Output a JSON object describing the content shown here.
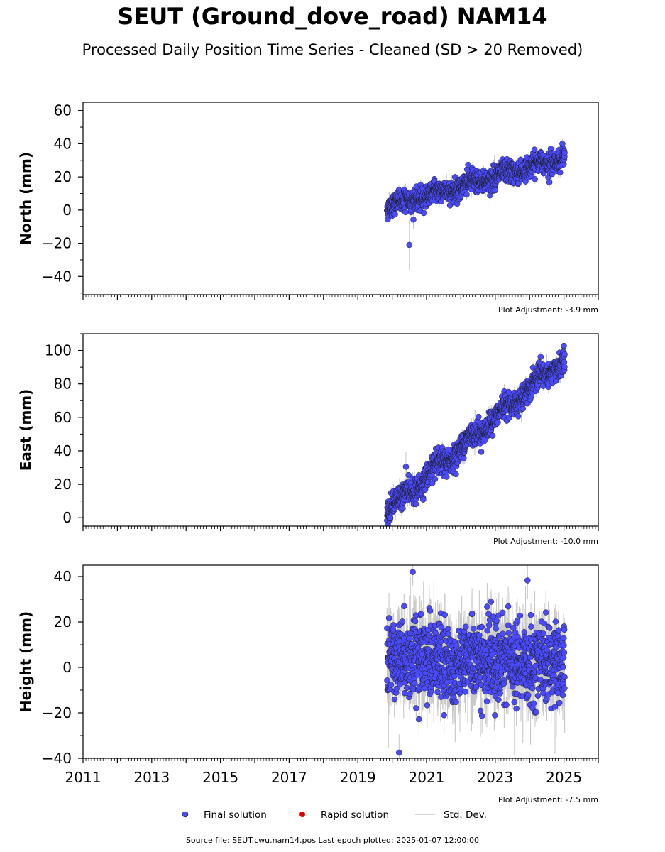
{
  "header": {
    "title": "SEUT (Ground_dove_road) NAM14",
    "subtitle": "Processed Daily Position Time Series - Cleaned (SD > 20 Removed)"
  },
  "footer": {
    "source": "Source file: SEUT.cwu.nam14.pos  Last epoch plotted: 2025-01-07 12:00:00"
  },
  "legend": {
    "final_label": "Final solution",
    "rapid_label": "Rapid solution",
    "std_label": "Std. Dev."
  },
  "colors": {
    "final_fill": "#4a4aff",
    "rapid_fill": "#e00000",
    "std_dev": "#c8c8c8",
    "marker_edge": "#1a1a1a"
  },
  "chart_data": [
    {
      "type": "scatter",
      "component": "north",
      "ylabel": "North (mm)",
      "xlim": [
        2011,
        2026
      ],
      "ylim": [
        -51,
        65
      ],
      "yticks": [
        60,
        40,
        20,
        0,
        -20,
        -40
      ],
      "ytick_labels": [
        "60",
        "40",
        "20",
        "0",
        "−20",
        "−40"
      ],
      "adjustment": "Plot Adjustment: -3.9 mm",
      "start_year": 2019.85,
      "end_year": 2025.02,
      "trend_start": 2.0,
      "trend_end": 32.0,
      "scatter": 3.2,
      "std_dev": 1.8,
      "outliers": [
        {
          "x": 2020.5,
          "y": -21.0,
          "err": 15.0
        }
      ]
    },
    {
      "type": "scatter",
      "component": "east",
      "ylabel": "East (mm)",
      "xlim": [
        2011,
        2026
      ],
      "ylim": [
        -5,
        110
      ],
      "yticks": [
        100,
        80,
        60,
        40,
        20,
        0
      ],
      "ytick_labels": [
        "100",
        "80",
        "60",
        "40",
        "20",
        "0"
      ],
      "adjustment": "Plot Adjustment: -10.0 mm",
      "start_year": 2019.85,
      "end_year": 2025.02,
      "trend_start": 4.0,
      "trend_end": 95.0,
      "scatter": 3.4,
      "std_dev": 2.5,
      "outliers": [
        {
          "x": 2020.4,
          "y": 30.5,
          "err": 9.0
        }
      ]
    },
    {
      "type": "scatter",
      "component": "height",
      "ylabel": "Height (mm)",
      "xlim": [
        2011,
        2026
      ],
      "ylim": [
        -40,
        45
      ],
      "yticks": [
        40,
        20,
        0,
        -20,
        -40
      ],
      "ytick_labels": [
        "40",
        "20",
        "0",
        "−20",
        "−40"
      ],
      "xticks": [
        2011,
        2013,
        2015,
        2017,
        2019,
        2021,
        2023,
        2025
      ],
      "xtick_labels": [
        "2011",
        "2013",
        "2015",
        "2017",
        "2019",
        "2021",
        "2023",
        "2025"
      ],
      "adjustment": "Plot Adjustment: -7.5 mm",
      "start_year": 2019.85,
      "end_year": 2025.02,
      "trend_start": 4.0,
      "trend_end": 2.0,
      "scatter": 8.5,
      "std_dev": 7.0,
      "outliers": [
        {
          "x": 2020.2,
          "y": -37.5,
          "err": 8.0
        },
        {
          "x": 2020.6,
          "y": 42.0,
          "err": 6.0
        }
      ]
    }
  ]
}
